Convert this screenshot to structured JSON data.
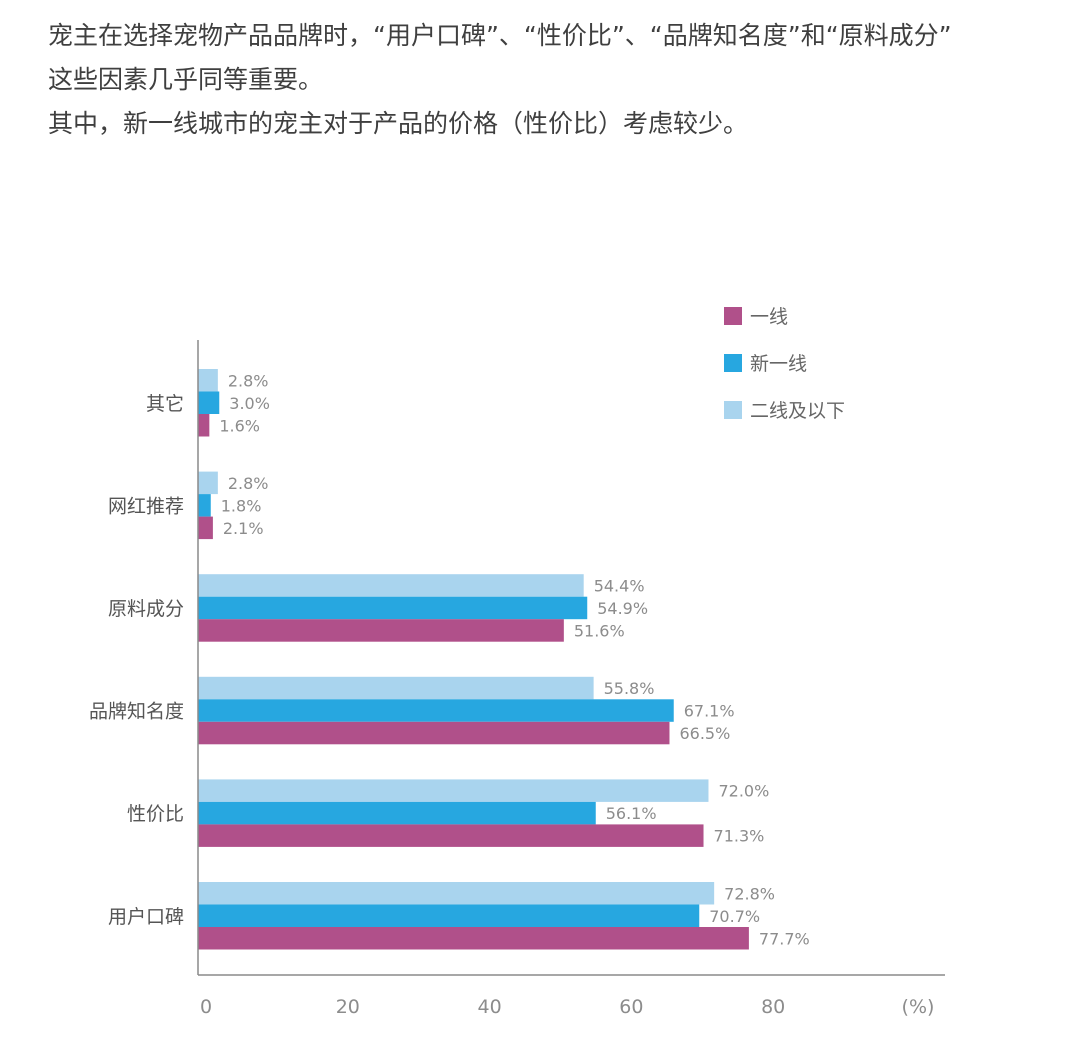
{
  "intro": {
    "line1": "宠主在选择宠物产品品牌时，“用户口碑”、“性价比”、“品牌知名度”和“原料成分”",
    "line2": "这些因素几乎同等重要。",
    "line3": "其中，新一线城市的宠主对于产品的价格（性价比）考虑较少。"
  },
  "chart_data": {
    "type": "bar",
    "orientation": "horizontal",
    "categories": [
      "其它",
      "网红推荐",
      "原料成分",
      "品牌知名度",
      "性价比",
      "用户口碑"
    ],
    "series": [
      {
        "name": "二线及以下",
        "color": "#a9d4ee",
        "values": [
          2.8,
          2.8,
          54.4,
          55.8,
          72.0,
          72.8
        ]
      },
      {
        "name": "新一线",
        "color": "#27a7e0",
        "values": [
          3.0,
          1.8,
          54.9,
          67.1,
          56.1,
          70.7
        ]
      },
      {
        "name": "一线",
        "color": "#b0508a",
        "values": [
          1.6,
          2.1,
          51.6,
          66.5,
          71.3,
          77.7
        ]
      }
    ],
    "legend_order": [
      "一线",
      "新一线",
      "二线及以下"
    ],
    "legend_position": "top-right",
    "xlim": [
      0,
      100
    ],
    "xticks": [
      0,
      20,
      40,
      60,
      80
    ],
    "xunit": "(%)",
    "grid": false,
    "value_suffix": "%"
  }
}
